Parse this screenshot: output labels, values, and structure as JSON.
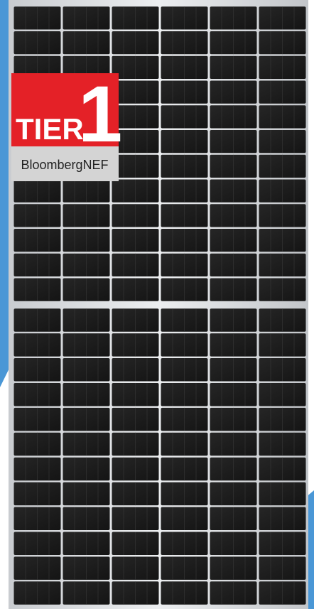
{
  "badge": {
    "tier": "TIER",
    "number": "1",
    "brand": "BloombergNEF"
  }
}
